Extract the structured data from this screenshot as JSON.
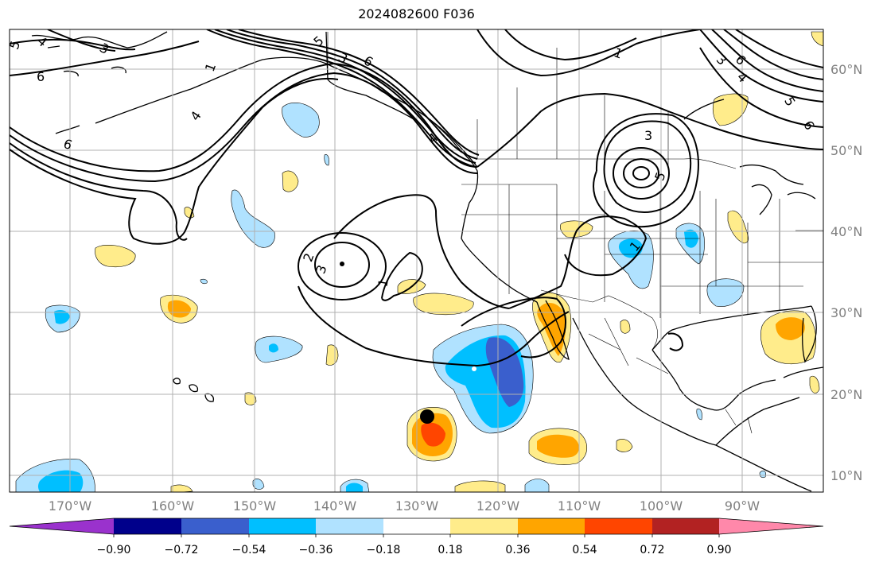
{
  "title": "2024082600 F036",
  "latitude_labels": [
    "60°N",
    "50°N",
    "40°N",
    "30°N",
    "20°N",
    "10°N"
  ],
  "longitude_labels": [
    "170°W",
    "160°W",
    "150°W",
    "140°W",
    "130°W",
    "120°W",
    "110°W",
    "100°W",
    "90°W"
  ],
  "colorbar": {
    "tick_labels": [
      "−0.90",
      "−0.72",
      "−0.54",
      "−0.36",
      "−0.18",
      "0.18",
      "0.36",
      "0.54",
      "0.72",
      "0.90"
    ],
    "colors": [
      "#9a32cd",
      "#00008b",
      "#3a5fcd",
      "#00bfff",
      "#b0e2ff",
      "#ffffff",
      "#ffec8b",
      "#ffa500",
      "#ff4500",
      "#b22222",
      "#ff88aa"
    ]
  },
  "contour_labels": [
    "5",
    "6",
    "4",
    "3",
    "6",
    "4",
    "1",
    "6",
    "3",
    "5",
    "4",
    "6",
    "3",
    "4",
    "3",
    "5",
    "5",
    "6",
    "2",
    "3",
    "1",
    "1",
    "1"
  ],
  "palette": {
    "yellow": "#ffec8b",
    "orange": "#ffa500",
    "red": "#ff4500",
    "light_blue": "#b0e2ff",
    "blue": "#00bfff",
    "dark_blue": "#3a5fcd"
  }
}
